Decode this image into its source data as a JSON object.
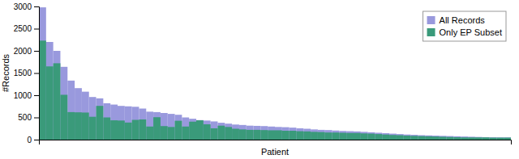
{
  "chart_data": {
    "type": "bar",
    "xlabel": "Patient",
    "ylabel": "#Records",
    "categories": [
      null,
      null,
      null,
      null,
      null,
      null,
      null,
      null,
      null,
      null,
      null,
      null,
      null,
      null,
      null,
      null,
      null,
      null,
      null,
      null,
      null,
      null,
      null,
      null,
      null,
      null,
      null,
      null,
      null,
      null,
      null,
      null,
      null,
      null,
      null,
      null,
      null,
      null,
      null,
      null,
      null,
      null,
      null,
      null,
      null,
      null,
      null,
      null,
      null,
      null,
      null,
      null,
      null,
      null,
      null,
      null,
      null,
      null,
      null,
      null,
      null,
      null,
      null,
      null,
      null,
      null
    ],
    "series": [
      {
        "name": "All Records",
        "color": "#9999dd",
        "values": [
          2980,
          2200,
          2000,
          1640,
          1330,
          1160,
          1080,
          960,
          930,
          820,
          790,
          760,
          750,
          740,
          700,
          630,
          620,
          600,
          580,
          560,
          500,
          470,
          440,
          430,
          410,
          380,
          360,
          340,
          330,
          315,
          310,
          305,
          295,
          285,
          280,
          270,
          255,
          245,
          230,
          220,
          215,
          205,
          195,
          190,
          185,
          175,
          165,
          155,
          145,
          135,
          125,
          115,
          108,
          100,
          95,
          90,
          85,
          80,
          75,
          70,
          65,
          60,
          55,
          52,
          50,
          50
        ]
      },
      {
        "name": "Only EP Subset",
        "color": "#3a9a7a",
        "values": [
          2230,
          1650,
          1720,
          1010,
          620,
          615,
          610,
          515,
          760,
          500,
          435,
          430,
          385,
          445,
          455,
          295,
          505,
          305,
          285,
          425,
          295,
          405,
          435,
          345,
          255,
          315,
          285,
          245,
          230,
          220,
          220,
          215,
          210,
          210,
          200,
          200,
          190,
          185,
          175,
          170,
          160,
          160,
          155,
          150,
          150,
          140,
          135,
          125,
          115,
          105,
          100,
          90,
          85,
          80,
          75,
          70,
          65,
          60,
          55,
          50,
          50,
          50,
          50,
          45,
          45,
          45
        ]
      }
    ],
    "ylim": [
      0,
      3000
    ],
    "yticks": [
      0,
      500,
      1000,
      1500,
      2000,
      2500,
      3000
    ],
    "grid": false,
    "legend": "upper right",
    "tick_labels": "y"
  }
}
